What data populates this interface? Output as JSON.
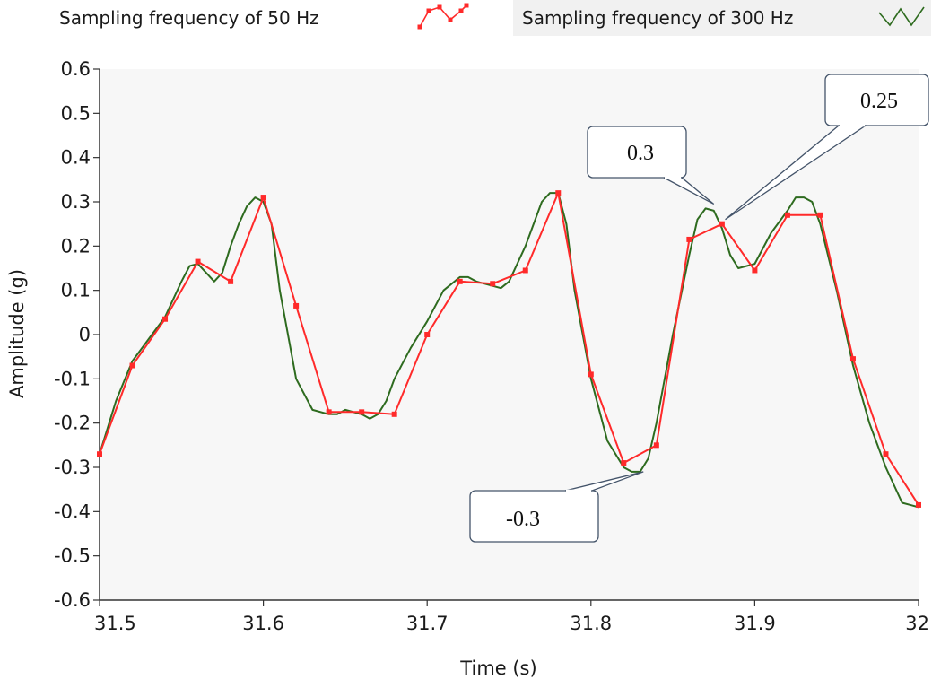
{
  "legend": [
    {
      "label": "Sampling frequency of 50 Hz",
      "color": "#ff2a2a",
      "icon": "red-line-with-markers-icon"
    },
    {
      "label": "Sampling frequency of 300 Hz",
      "color": "#2e6b1f",
      "icon": "green-line-icon"
    }
  ],
  "chart_data": {
    "type": "line",
    "xlabel": "Time (s)",
    "ylabel": "Amplitude (g)",
    "xlim": [
      31.5,
      32
    ],
    "ylim": [
      -0.6,
      0.6
    ],
    "x_ticks": [
      "31.5",
      "31.6",
      "31.7",
      "31.8",
      "31.9",
      "32"
    ],
    "y_ticks": [
      "0.6",
      "0.5",
      "0.4",
      "0.3",
      "0.2",
      "0.1",
      "0",
      "-0.1",
      "-0.2",
      "-0.3",
      "-0.4",
      "-0.5",
      "-0.6"
    ],
    "grid": false,
    "legend_position": "top",
    "series": [
      {
        "name": "Sampling frequency of 300 Hz",
        "color": "#2e6b1f",
        "markers": false,
        "x": [
          31.5,
          31.51,
          31.52,
          31.53,
          31.54,
          31.55,
          31.555,
          31.56,
          31.565,
          31.57,
          31.575,
          31.58,
          31.585,
          31.59,
          31.595,
          31.6,
          31.605,
          31.61,
          31.62,
          31.63,
          31.64,
          31.645,
          31.65,
          31.66,
          31.665,
          31.67,
          31.675,
          31.68,
          31.69,
          31.7,
          31.71,
          31.72,
          31.725,
          31.73,
          31.74,
          31.745,
          31.75,
          31.76,
          31.77,
          31.775,
          31.78,
          31.785,
          31.79,
          31.8,
          31.81,
          31.82,
          31.825,
          31.83,
          31.835,
          31.84,
          31.85,
          31.86,
          31.865,
          31.87,
          31.875,
          31.88,
          31.885,
          31.89,
          31.9,
          31.91,
          31.92,
          31.925,
          31.93,
          31.935,
          31.94,
          31.95,
          31.96,
          31.97,
          31.98,
          31.99,
          32.0
        ],
        "y": [
          -0.27,
          -0.15,
          -0.06,
          -0.01,
          0.04,
          0.12,
          0.155,
          0.16,
          0.14,
          0.12,
          0.14,
          0.2,
          0.25,
          0.29,
          0.31,
          0.3,
          0.25,
          0.1,
          -0.1,
          -0.17,
          -0.18,
          -0.18,
          -0.17,
          -0.18,
          -0.19,
          -0.18,
          -0.15,
          -0.1,
          -0.03,
          0.03,
          0.1,
          0.13,
          0.13,
          0.12,
          0.11,
          0.105,
          0.12,
          0.2,
          0.3,
          0.32,
          0.32,
          0.25,
          0.1,
          -0.1,
          -0.24,
          -0.3,
          -0.31,
          -0.31,
          -0.28,
          -0.2,
          0.0,
          0.18,
          0.26,
          0.285,
          0.28,
          0.24,
          0.18,
          0.15,
          0.16,
          0.23,
          0.28,
          0.31,
          0.31,
          0.3,
          0.25,
          0.1,
          -0.07,
          -0.2,
          -0.3,
          -0.38,
          -0.39
        ]
      },
      {
        "name": "Sampling frequency of 50 Hz",
        "color": "#ff2a2a",
        "markers": true,
        "x": [
          31.5,
          31.52,
          31.54,
          31.56,
          31.58,
          31.6,
          31.62,
          31.64,
          31.66,
          31.68,
          31.7,
          31.72,
          31.74,
          31.76,
          31.78,
          31.8,
          31.82,
          31.84,
          31.86,
          31.88,
          31.9,
          31.92,
          31.94,
          31.96,
          31.98,
          32.0
        ],
        "y": [
          -0.27,
          -0.07,
          0.035,
          0.165,
          0.12,
          0.31,
          0.065,
          -0.175,
          -0.175,
          -0.18,
          0.0,
          0.12,
          0.115,
          0.145,
          0.32,
          -0.09,
          -0.29,
          -0.25,
          0.215,
          0.25,
          0.145,
          0.27,
          0.27,
          -0.055,
          -0.27,
          -0.385
        ]
      }
    ],
    "annotations": [
      {
        "text": "0.3",
        "target_x": 31.875,
        "target_y": 0.295
      },
      {
        "text": "0.25",
        "target_x": 31.882,
        "target_y": 0.26
      },
      {
        "text": "-0.3",
        "target_x": 31.832,
        "target_y": -0.31
      }
    ]
  }
}
